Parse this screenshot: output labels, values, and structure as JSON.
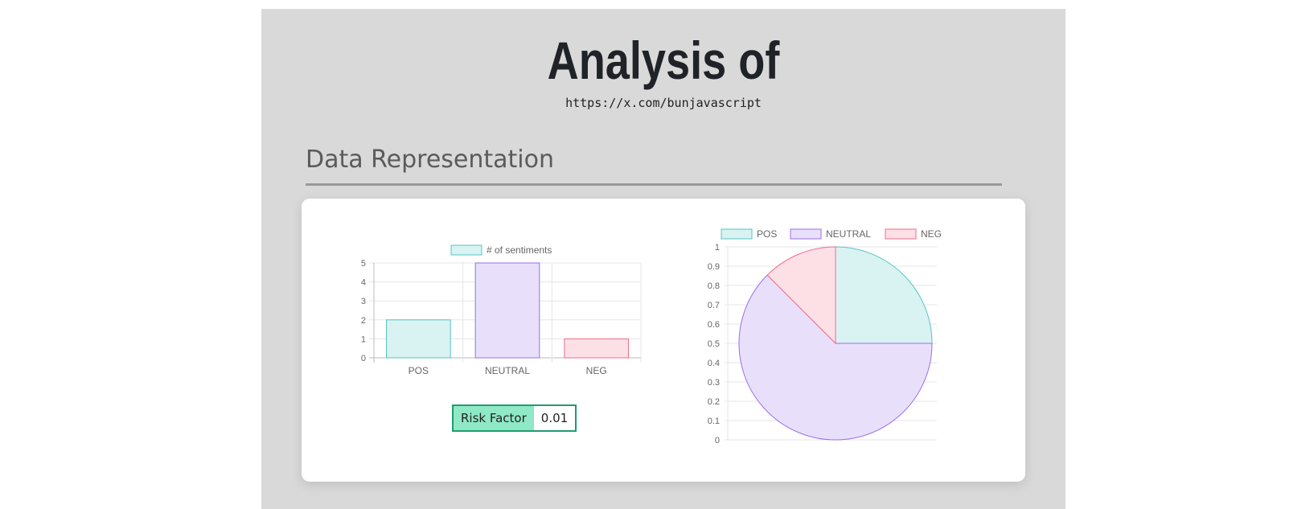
{
  "header": {
    "title": "Analysis of",
    "url": "https://x.com/bunjavascript"
  },
  "section": {
    "heading": "Data Representation"
  },
  "risk": {
    "label": "Risk Factor",
    "value": "0.01"
  },
  "colors": {
    "pos_fill": "#d9f2f2",
    "pos_stroke": "#58c4c4",
    "neutral_fill": "#e8e0fb",
    "neutral_stroke": "#9b6dec",
    "neg_fill": "#fde0e6",
    "neg_stroke": "#f06d8d"
  },
  "chart_data": [
    {
      "type": "bar",
      "legend": [
        "# of sentiments"
      ],
      "categories": [
        "POS",
        "NEUTRAL",
        "NEG"
      ],
      "series": [
        {
          "name": "# of sentiments",
          "values": [
            2,
            5,
            1
          ]
        }
      ],
      "ylim": [
        0,
        5
      ],
      "yticks": [
        "0",
        "1",
        "2",
        "3",
        "4",
        "5"
      ],
      "grid": true,
      "legend_position": "top"
    },
    {
      "type": "pie",
      "labels": [
        "POS",
        "NEUTRAL",
        "NEG"
      ],
      "values": [
        2,
        5,
        1
      ],
      "yticks": [
        "0",
        "0.1",
        "0.2",
        "0.3",
        "0.4",
        "0.5",
        "0.6",
        "0.7",
        "0.8",
        "0.9",
        "1"
      ],
      "grid": true,
      "legend_position": "top"
    }
  ]
}
